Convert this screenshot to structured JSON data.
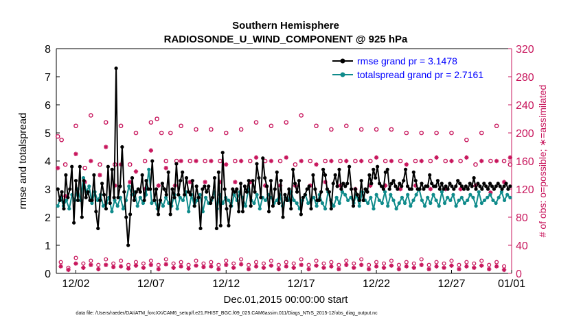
{
  "chart_data": {
    "type": "line",
    "title": "Southern Hemisphere",
    "subtitle": "RADIOSONDE_U_WIND_COMPONENT @ 925 hPa",
    "xlabel": "Dec.01,2015 00:00:00 start",
    "ylabel": "rmse and totalspread",
    "ylabel_right": "# of obs: o=possible; ∗=assimilated",
    "xlim": [
      0.7,
      31.0
    ],
    "ylim": [
      0,
      8
    ],
    "ylim_right": [
      0,
      320
    ],
    "x_ticks": [
      {
        "value": 2,
        "label": "12/02"
      },
      {
        "value": 7,
        "label": "12/07"
      },
      {
        "value": 12,
        "label": "12/12"
      },
      {
        "value": 17,
        "label": "12/17"
      },
      {
        "value": 22,
        "label": "12/22"
      },
      {
        "value": 27,
        "label": "12/27"
      },
      {
        "value": 32,
        "label": "01/01"
      }
    ],
    "y_ticks": [
      "0",
      "1",
      "2",
      "3",
      "4",
      "5",
      "6",
      "7",
      "8"
    ],
    "y_ticks_right": [
      "0",
      "40",
      "80",
      "120",
      "160",
      "200",
      "240",
      "280",
      "320"
    ],
    "series": [
      {
        "name": "rmse grand pr = 3.1478",
        "color": "#000000",
        "values": [
          3.0,
          2.6,
          2.9,
          2.3,
          3.5,
          2.7,
          3.0,
          3.8,
          1.8,
          3.3,
          2.6,
          3.8,
          2.0,
          3.3,
          2.7,
          2.9,
          2.6,
          2.6,
          3.5,
          2.2,
          1.6,
          2.6,
          3.2,
          2.8,
          2.3,
          3.8,
          2.5,
          3.7,
          2.7,
          7.3,
          2.7,
          3.1,
          4.5,
          2.9,
          2.0,
          1.0,
          2.1,
          3.4,
          2.6,
          2.9,
          3.0,
          2.9,
          3.5,
          2.6,
          3.3,
          3.0,
          3.0,
          4.0,
          2.6,
          3.0,
          2.1,
          2.6,
          3.2,
          3.0,
          2.8,
          3.6,
          2.1,
          3.0,
          2.7,
          3.9,
          2.8,
          3.3,
          3.6,
          2.8,
          3.4,
          2.9,
          2.8,
          3.3,
          2.4,
          3.1,
          2.7,
          1.6,
          3.0,
          3.1,
          2.9,
          3.1,
          2.5,
          2.7,
          3.4,
          1.6,
          3.6,
          1.7,
          4.3,
          3.0,
          2.3,
          1.7,
          2.4,
          3.0,
          2.9,
          3.0,
          2.2,
          3.2,
          2.2,
          3.1,
          2.9,
          3.3,
          2.4,
          3.3,
          2.9,
          3.9,
          3.4,
          2.7,
          4.1,
          3.4,
          3.1,
          2.2,
          3.3,
          2.4,
          3.0,
          3.6,
          2.5,
          3.3,
          2.0,
          2.8,
          2.6,
          3.0,
          2.3,
          3.7,
          3.2,
          2.9,
          3.3,
          2.1,
          2.7,
          2.8,
          3.0,
          3.1,
          2.3,
          3.5,
          3.0,
          2.6,
          2.6,
          2.9,
          3.7,
          3.5,
          3.0,
          2.9,
          2.3,
          3.2,
          3.5,
          3.1,
          3.7,
          3.0,
          3.2,
          3.1,
          3.2,
          3.8,
          3.0,
          2.4,
          3.0,
          2.8,
          2.6,
          3.3,
          2.6,
          3.0,
          2.9,
          3.5,
          3.2,
          3.7,
          3.4,
          3.8,
          3.2,
          3.1,
          3.0,
          3.6,
          3.7,
          3.0,
          3.2,
          3.3,
          3.1,
          3.0,
          3.2,
          3.1,
          3.3,
          3.7,
          3.1,
          3.0,
          3.0,
          3.6,
          3.3,
          3.0,
          3.0,
          3.2,
          3.0,
          3.1,
          3.1,
          3.5,
          3.2,
          3.1,
          3.1,
          3.3,
          3.0,
          3.2,
          3.0,
          3.1,
          3.0,
          3.2,
          3.1,
          3.0,
          3.1,
          3.3,
          3.2,
          3.1,
          3.0,
          3.1,
          3.0,
          3.2,
          3.1,
          3.4,
          3.0,
          3.2,
          3.1,
          3.0,
          3.2,
          3.1,
          3.0,
          3.2,
          3.1,
          3.0,
          3.1,
          3.2,
          3.1,
          3.0,
          3.1,
          3.2,
          3.0,
          3.1
        ]
      },
      {
        "name": "totalspread grand pr = 2.7161",
        "color": "#0f8b8b",
        "values": [
          2.4,
          2.7,
          2.4,
          2.6,
          2.3,
          2.8,
          2.6,
          3.0,
          2.6,
          3.4,
          2.9,
          3.1,
          2.5,
          2.9,
          2.6,
          2.8,
          2.4,
          2.5,
          2.7,
          2.2,
          2.6,
          2.4,
          2.7,
          2.3,
          2.6,
          3.1,
          2.8,
          2.9,
          2.4,
          2.7,
          2.5,
          2.8,
          3.7,
          2.5,
          2.6,
          2.3,
          2.6,
          2.4,
          2.7,
          2.5,
          2.4,
          2.8,
          2.3,
          2.7,
          2.6,
          2.9,
          2.2,
          2.8,
          2.4,
          2.6,
          2.8,
          2.2,
          2.7,
          2.5,
          2.6,
          2.9,
          2.3,
          2.8,
          2.5,
          2.7,
          2.6,
          2.4,
          2.8,
          2.6,
          2.9,
          2.7,
          2.4,
          3.0,
          2.6,
          2.5,
          2.8,
          2.3,
          2.7,
          2.6,
          2.8,
          2.7,
          2.5,
          2.6,
          2.8,
          2.4,
          2.7,
          2.6,
          2.9,
          2.6,
          2.5,
          2.3,
          2.6,
          2.8,
          2.5,
          2.6,
          2.7,
          2.4,
          2.8,
          2.5,
          2.3,
          2.9,
          2.6,
          2.4,
          2.7,
          2.5,
          2.9,
          2.8,
          2.6,
          2.7,
          2.5,
          2.8,
          2.4,
          2.9,
          2.6,
          2.5,
          2.7,
          2.3,
          2.8,
          2.6,
          2.5,
          2.9,
          2.4,
          2.8,
          2.6,
          2.3,
          2.5,
          2.7,
          2.5,
          2.8,
          2.4,
          2.6,
          2.8,
          3.0,
          2.6,
          2.4,
          2.7,
          2.5,
          2.8,
          2.6,
          2.4,
          2.9,
          2.5,
          2.7,
          2.6,
          2.8,
          2.4,
          2.6,
          2.7,
          2.5,
          2.6,
          2.8,
          2.7,
          2.4,
          2.9,
          2.5,
          2.6,
          2.7,
          2.8,
          2.6,
          2.5,
          2.7,
          2.9,
          2.6,
          2.8,
          2.7
        ]
      }
    ],
    "possible_obs": [
      {
        "x": 0.8,
        "v": 195
      },
      {
        "x": 1.05,
        "v": 190
      },
      {
        "x": 1.3,
        "v": 155
      },
      {
        "x": 2.0,
        "v": 210
      },
      {
        "x": 2.6,
        "v": 150
      },
      {
        "x": 3.0,
        "v": 225
      },
      {
        "x": 3.6,
        "v": 155
      },
      {
        "x": 4.0,
        "v": 215
      },
      {
        "x": 4.6,
        "v": 155
      },
      {
        "x": 5.0,
        "v": 210
      },
      {
        "x": 5.6,
        "v": 155
      },
      {
        "x": 6.0,
        "v": 200
      },
      {
        "x": 6.6,
        "v": 160
      },
      {
        "x": 7.0,
        "v": 215
      },
      {
        "x": 7.4,
        "v": 220
      },
      {
        "x": 7.7,
        "v": 200
      },
      {
        "x": 8.0,
        "v": 160
      },
      {
        "x": 8.3,
        "v": 200
      },
      {
        "x": 8.7,
        "v": 160
      },
      {
        "x": 9.0,
        "v": 210
      },
      {
        "x": 9.6,
        "v": 160
      },
      {
        "x": 10.0,
        "v": 205
      },
      {
        "x": 10.6,
        "v": 160
      },
      {
        "x": 11.0,
        "v": 205
      },
      {
        "x": 11.6,
        "v": 160
      },
      {
        "x": 12.0,
        "v": 200
      },
      {
        "x": 12.6,
        "v": 160
      },
      {
        "x": 13.0,
        "v": 205
      },
      {
        "x": 13.6,
        "v": 160
      },
      {
        "x": 14.0,
        "v": 215
      },
      {
        "x": 14.6,
        "v": 160
      },
      {
        "x": 15.0,
        "v": 210
      },
      {
        "x": 15.6,
        "v": 160
      },
      {
        "x": 16.0,
        "v": 215
      },
      {
        "x": 16.6,
        "v": 155
      },
      {
        "x": 17.0,
        "v": 225
      },
      {
        "x": 17.6,
        "v": 160
      },
      {
        "x": 18.0,
        "v": 210
      },
      {
        "x": 18.6,
        "v": 160
      },
      {
        "x": 19.0,
        "v": 205
      },
      {
        "x": 19.6,
        "v": 160
      },
      {
        "x": 20.0,
        "v": 210
      },
      {
        "x": 20.6,
        "v": 160
      },
      {
        "x": 21.0,
        "v": 205
      },
      {
        "x": 21.6,
        "v": 160
      },
      {
        "x": 22.0,
        "v": 205
      },
      {
        "x": 22.6,
        "v": 160
      },
      {
        "x": 23.0,
        "v": 205
      },
      {
        "x": 23.6,
        "v": 160
      },
      {
        "x": 24.0,
        "v": 200
      },
      {
        "x": 24.6,
        "v": 160
      },
      {
        "x": 25.0,
        "v": 200
      },
      {
        "x": 25.6,
        "v": 160
      },
      {
        "x": 26.0,
        "v": 200
      },
      {
        "x": 26.6,
        "v": 160
      },
      {
        "x": 27.0,
        "v": 200
      },
      {
        "x": 27.6,
        "v": 160
      },
      {
        "x": 28.0,
        "v": 190
      },
      {
        "x": 28.6,
        "v": 155
      },
      {
        "x": 29.0,
        "v": 200
      },
      {
        "x": 29.6,
        "v": 160
      },
      {
        "x": 30.0,
        "v": 210
      },
      {
        "x": 30.5,
        "v": 160
      },
      {
        "x": 30.9,
        "v": 155
      }
    ],
    "assimilated_obs": [
      {
        "x": 0.8,
        "v": 150
      },
      {
        "x": 1.3,
        "v": 110
      },
      {
        "x": 2.0,
        "v": 170
      },
      {
        "x": 2.6,
        "v": 130
      },
      {
        "x": 3.0,
        "v": 160
      },
      {
        "x": 3.6,
        "v": 140
      },
      {
        "x": 4.0,
        "v": 180
      },
      {
        "x": 4.6,
        "v": 125
      },
      {
        "x": 5.0,
        "v": 155
      },
      {
        "x": 5.6,
        "v": 130
      },
      {
        "x": 6.0,
        "v": 145
      },
      {
        "x": 6.6,
        "v": 120
      },
      {
        "x": 7.0,
        "v": 175
      },
      {
        "x": 7.5,
        "v": 125
      },
      {
        "x": 8.0,
        "v": 150
      },
      {
        "x": 8.6,
        "v": 125
      },
      {
        "x": 9.0,
        "v": 160
      },
      {
        "x": 9.6,
        "v": 130
      },
      {
        "x": 10.0,
        "v": 160
      },
      {
        "x": 10.6,
        "v": 130
      },
      {
        "x": 11.0,
        "v": 160
      },
      {
        "x": 11.6,
        "v": 130
      },
      {
        "x": 12.0,
        "v": 155
      },
      {
        "x": 12.6,
        "v": 130
      },
      {
        "x": 13.0,
        "v": 160
      },
      {
        "x": 13.6,
        "v": 130
      },
      {
        "x": 14.0,
        "v": 165
      },
      {
        "x": 14.6,
        "v": 125
      },
      {
        "x": 15.0,
        "v": 160
      },
      {
        "x": 15.6,
        "v": 125
      },
      {
        "x": 16.0,
        "v": 165
      },
      {
        "x": 16.6,
        "v": 125
      },
      {
        "x": 17.0,
        "v": 160
      },
      {
        "x": 17.6,
        "v": 125
      },
      {
        "x": 18.0,
        "v": 155
      },
      {
        "x": 18.6,
        "v": 130
      },
      {
        "x": 19.0,
        "v": 160
      },
      {
        "x": 19.6,
        "v": 125
      },
      {
        "x": 20.0,
        "v": 160
      },
      {
        "x": 20.6,
        "v": 120
      },
      {
        "x": 21.0,
        "v": 160
      },
      {
        "x": 21.6,
        "v": 125
      },
      {
        "x": 22.0,
        "v": 165
      },
      {
        "x": 22.6,
        "v": 125
      },
      {
        "x": 23.0,
        "v": 160
      },
      {
        "x": 23.6,
        "v": 120
      },
      {
        "x": 24.0,
        "v": 155
      },
      {
        "x": 24.6,
        "v": 125
      },
      {
        "x": 25.0,
        "v": 160
      },
      {
        "x": 25.6,
        "v": 120
      },
      {
        "x": 26.0,
        "v": 165
      },
      {
        "x": 26.6,
        "v": 120
      },
      {
        "x": 27.0,
        "v": 160
      },
      {
        "x": 27.6,
        "v": 120
      },
      {
        "x": 28.0,
        "v": 165
      },
      {
        "x": 28.6,
        "v": 125
      },
      {
        "x": 29.0,
        "v": 160
      },
      {
        "x": 29.6,
        "v": 115
      },
      {
        "x": 30.0,
        "v": 160
      },
      {
        "x": 30.5,
        "v": 130
      },
      {
        "x": 30.9,
        "v": 165
      }
    ],
    "possible_obs_low": [
      1.0,
      1.5,
      2.0,
      2.5,
      3.0,
      3.5,
      4.0,
      4.5,
      5.0,
      5.5,
      6.0,
      6.5,
      7.0,
      7.5,
      8.0,
      8.5,
      9.0,
      9.5,
      10.0,
      10.5,
      11.0,
      11.5,
      12.0,
      12.5,
      13.0,
      13.5,
      14.0,
      14.5,
      15.0,
      15.5,
      16.0,
      16.5,
      17.0,
      17.5,
      18.0,
      18.5,
      19.0,
      19.5,
      20.0,
      20.5,
      21.0,
      21.5,
      22.0,
      22.5,
      23.0,
      23.5,
      24.0,
      24.5,
      25.0,
      25.5,
      26.0,
      26.5,
      27.0,
      27.5,
      28.0,
      28.5,
      29.0,
      29.5,
      30.0,
      30.5
    ],
    "possible_obs_low_values": [
      16,
      8,
      22,
      14,
      18,
      12,
      20,
      14,
      18,
      12,
      16,
      14,
      18,
      12,
      20,
      14,
      16,
      12,
      18,
      14,
      16,
      12,
      18,
      14,
      20,
      12,
      16,
      14,
      18,
      12,
      16,
      14,
      20,
      12,
      18,
      14,
      16,
      12,
      18,
      14,
      20,
      12,
      16,
      14,
      18,
      12,
      16,
      14,
      20,
      12,
      16,
      14,
      18,
      12,
      16,
      14,
      18,
      12,
      16,
      10
    ],
    "assimilated_obs_low_values": [
      10,
      5,
      14,
      8,
      12,
      6,
      12,
      9,
      10,
      7,
      11,
      8,
      12,
      6,
      13,
      8,
      10,
      7,
      11,
      9,
      10,
      6,
      12,
      8,
      13,
      6,
      10,
      8,
      11,
      6,
      10,
      8,
      12,
      6,
      11,
      8,
      10,
      6,
      12,
      8,
      12,
      6,
      10,
      8,
      11,
      6,
      10,
      8,
      12,
      6,
      10,
      8,
      11,
      6,
      10,
      8,
      11,
      6,
      10,
      5
    ],
    "left_axis_color": "#000000",
    "right_axis_color": "#c8175d",
    "footnote": "data file: /Users/raeder/DAI/ATM_forcXX/CAM6_setup/f.e21.FHIST_BGC.f09_025.CAM6assim.011/Diags_NTrS_2015-12/obs_diag_output.nc"
  }
}
